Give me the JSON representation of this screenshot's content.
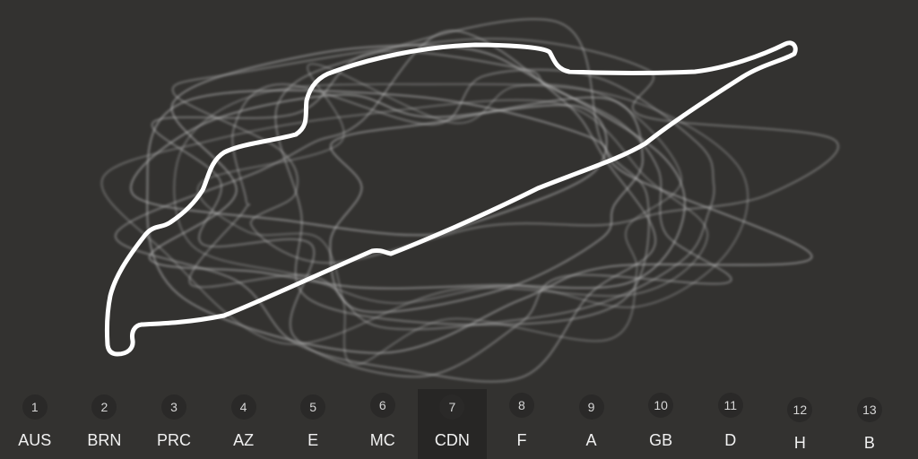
{
  "selected_race": "CDN",
  "colors": {
    "background": "#333230",
    "active_item": "#272625",
    "badge": "#2a2928",
    "track_highlight": "#ffffff",
    "track_ghost": "#bfbfbf"
  },
  "races": [
    {
      "number": "1",
      "code": "AUS"
    },
    {
      "number": "2",
      "code": "BRN"
    },
    {
      "number": "3",
      "code": "PRC"
    },
    {
      "number": "4",
      "code": "AZ"
    },
    {
      "number": "5",
      "code": "E"
    },
    {
      "number": "6",
      "code": "MC"
    },
    {
      "number": "7",
      "code": "CDN"
    },
    {
      "number": "8",
      "code": "F"
    },
    {
      "number": "9",
      "code": "A"
    },
    {
      "number": "10",
      "code": "GB"
    },
    {
      "number": "11",
      "code": "D"
    },
    {
      "number": "12",
      "code": "H"
    },
    {
      "number": "13",
      "code": "B"
    }
  ]
}
